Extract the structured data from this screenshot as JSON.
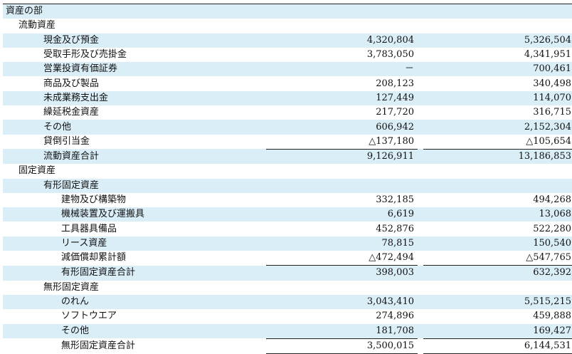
{
  "table": {
    "rows": [
      [
        "資産の部"
      ],
      [
        "流動資産"
      ],
      [
        "現金及び預金",
        "4,320,804",
        "5,326,504"
      ],
      [
        "受取手形及び売掛金",
        "3,783,050",
        "4,341,951"
      ],
      [
        "営業投資有価証券",
        "－",
        "700,461"
      ],
      [
        "商品及び製品",
        "208,123",
        "340,498"
      ],
      [
        "未成業務支出金",
        "127,449",
        "114,070"
      ],
      [
        "繰延税金資産",
        "217,720",
        "316,715"
      ],
      [
        "その他",
        "606,942",
        "2,152,304"
      ],
      [
        "貸倒引当金",
        "△137,180",
        "△105,654"
      ],
      [
        "流動資産合計",
        "9,126,911",
        "13,186,853"
      ],
      [
        "固定資産"
      ],
      [
        "有形固定資産"
      ],
      [
        "建物及び構築物",
        "332,185",
        "494,268"
      ],
      [
        "機械装置及び運搬具",
        "6,619",
        "13,068"
      ],
      [
        "工具器具備品",
        "452,876",
        "522,280"
      ],
      [
        "リース資産",
        "78,815",
        "150,540"
      ],
      [
        "減価償却累計額",
        "△472,494",
        "△547,765"
      ],
      [
        "有形固定資産合計",
        "398,003",
        "632,392"
      ],
      [
        "無形固定資産"
      ],
      [
        "のれん",
        "3,043,410",
        "5,515,215"
      ],
      [
        "ソフトウエア",
        "274,896",
        "459,888"
      ],
      [
        "その他",
        "181,708",
        "169,427"
      ],
      [
        "無形固定資産合計",
        "3,500,015",
        "6,144,531"
      ]
    ]
  }
}
